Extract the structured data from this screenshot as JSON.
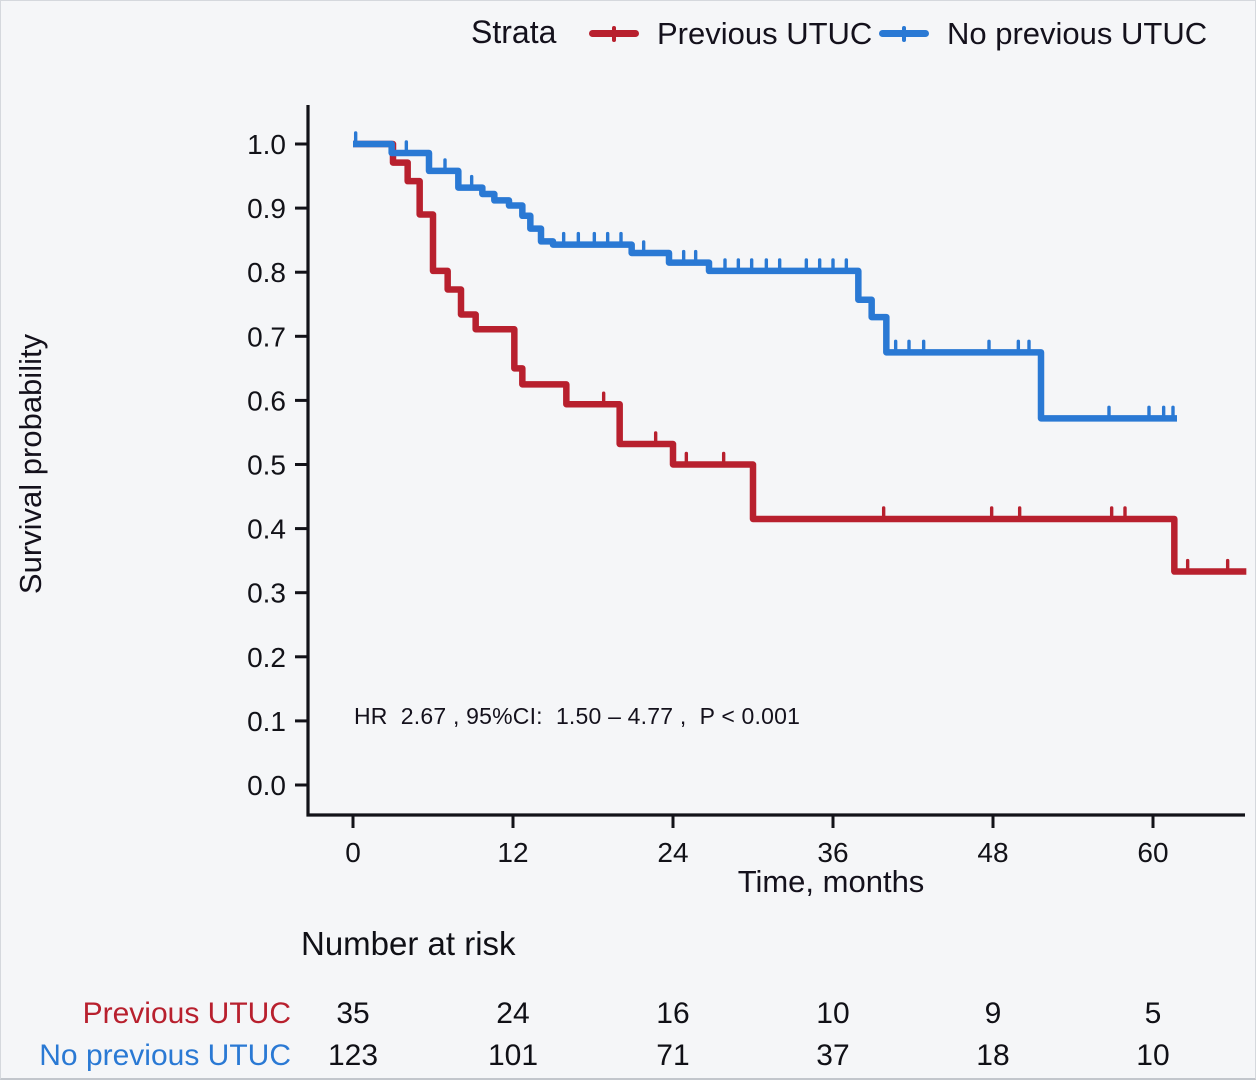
{
  "legend": {
    "title": "Strata",
    "items": [
      {
        "label": "Previous UTUC",
        "color": "#b8202e"
      },
      {
        "label": "No previous UTUC",
        "color": "#2a79d4"
      }
    ]
  },
  "risk_table": {
    "title": "Number at risk",
    "time_points": [
      0,
      12,
      24,
      36,
      48,
      60
    ],
    "rows": [
      {
        "label": "Previous UTUC",
        "color": "#b8202e",
        "counts": [
          35,
          24,
          16,
          10,
          9,
          5
        ]
      },
      {
        "label": "No previous UTUC",
        "color": "#2a79d4",
        "counts": [
          123,
          101,
          71,
          37,
          18,
          10
        ]
      }
    ]
  },
  "chart_data": {
    "type": "line",
    "subtype": "kaplan_meier_step",
    "xlabel": "Time, months",
    "ylabel": "Survival probability",
    "xlim": [
      0,
      67
    ],
    "ylim": [
      0.0,
      1.0
    ],
    "x_ticks": [
      0,
      12,
      24,
      36,
      48,
      60
    ],
    "y_ticks": [
      0.0,
      0.1,
      0.2,
      0.3,
      0.4,
      0.5,
      0.6,
      0.7,
      0.8,
      0.9,
      1.0
    ],
    "grid": false,
    "legend_position": "top",
    "stats_annotation": "HR  2.67 , 95%CI:  1.50 – 4.77 ,  P < 0.001",
    "stats": {
      "hr": 2.67,
      "ci_low": 1.5,
      "ci_high": 4.77,
      "p_value": "< 0.001"
    },
    "series": [
      {
        "name": "Previous UTUC",
        "color": "#b8202e",
        "start": [
          0,
          1.0
        ],
        "end_time": 67.0,
        "drops": [
          [
            3.0,
            0.971
          ],
          [
            4.1,
            0.942
          ],
          [
            5.0,
            0.89
          ],
          [
            6.0,
            0.802
          ],
          [
            7.1,
            0.773
          ],
          [
            8.1,
            0.734
          ],
          [
            9.2,
            0.711
          ],
          [
            12.1,
            0.65
          ],
          [
            12.7,
            0.625
          ],
          [
            16.0,
            0.594
          ],
          [
            20.0,
            0.532
          ],
          [
            24.0,
            0.5
          ],
          [
            30.0,
            0.415
          ],
          [
            61.6,
            0.333
          ]
        ],
        "censor_times": [
          18.8,
          22.7,
          25.0,
          27.8,
          39.8,
          47.9,
          50.0,
          56.9,
          57.9,
          62.6,
          65.6
        ]
      },
      {
        "name": "No previous UTUC",
        "color": "#2a79d4",
        "start": [
          0,
          1.0
        ],
        "end_time": 61.8,
        "drops": [
          [
            2.9,
            0.986
          ],
          [
            5.7,
            0.958
          ],
          [
            7.9,
            0.932
          ],
          [
            9.7,
            0.922
          ],
          [
            10.6,
            0.912
          ],
          [
            11.7,
            0.904
          ],
          [
            12.7,
            0.888
          ],
          [
            13.3,
            0.868
          ],
          [
            14.1,
            0.848
          ],
          [
            15.0,
            0.843
          ],
          [
            20.9,
            0.83
          ],
          [
            23.7,
            0.815
          ],
          [
            26.7,
            0.802
          ],
          [
            37.9,
            0.757
          ],
          [
            38.9,
            0.73
          ],
          [
            40.0,
            0.675
          ],
          [
            51.6,
            0.572
          ]
        ],
        "censor_times": [
          0.2,
          4.0,
          6.9,
          8.9,
          15.8,
          16.9,
          18.1,
          19.1,
          20.1,
          21.8,
          24.8,
          25.7,
          27.9,
          28.9,
          29.9,
          31.0,
          32.0,
          34.0,
          35.0,
          36.0,
          37.0,
          40.7,
          41.7,
          42.8,
          47.7,
          49.9,
          50.7,
          56.7,
          59.7,
          60.8,
          61.5
        ]
      }
    ]
  }
}
